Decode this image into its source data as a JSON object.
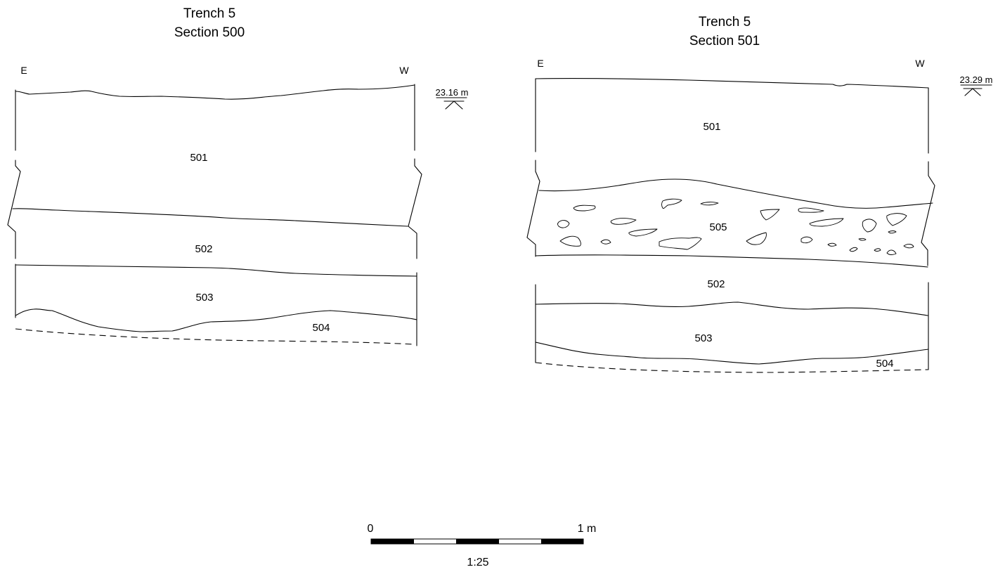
{
  "figure": {
    "sections": [
      {
        "id": "section-500",
        "title_line1": "Trench 5",
        "title_line2": "Section 500",
        "left_direction": "E",
        "right_direction": "W",
        "datum": "23.16 m",
        "contexts": [
          "501",
          "502",
          "503",
          "504"
        ]
      },
      {
        "id": "section-501",
        "title_line1": "Trench 5",
        "title_line2": "Section 501",
        "left_direction": "E",
        "right_direction": "W",
        "datum": "23.29 m",
        "contexts": [
          "501",
          "505",
          "502",
          "503",
          "504"
        ]
      }
    ],
    "scale_bar": {
      "start_label": "0",
      "end_label": "1 m",
      "ratio": "1:25"
    }
  }
}
